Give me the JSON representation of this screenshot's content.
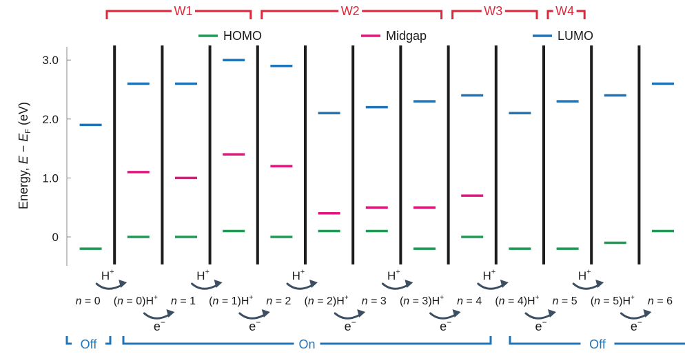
{
  "colors": {
    "homo": "#1e9a55",
    "midgap": "#e0187d",
    "lumo": "#1f74b8",
    "bracket_red": "#e0253a",
    "bracket_blue": "#1f74b8",
    "arrow": "#3c4f62",
    "divider": "#1c1c1c",
    "axis": "#888888"
  },
  "chart_data": {
    "type": "energy-level-diagram",
    "ylabel": "Energy, E − E_F (eV)",
    "ylabel_parts": {
      "pre": "Energy, ",
      "e1": "E",
      "mid": " − ",
      "e2": "E",
      "sub": "F",
      "post": " (eV)"
    },
    "yticks": [
      {
        "value": 0,
        "label": "0"
      },
      {
        "value": 1.0,
        "label": "1.0"
      },
      {
        "value": 2.0,
        "label": "2.0"
      },
      {
        "value": 3.0,
        "label": "3.0"
      }
    ],
    "ylim": [
      -0.5,
      3.3
    ],
    "legend": [
      {
        "name": "HOMO",
        "key": "homo"
      },
      {
        "name": "Midgap",
        "key": "midgap"
      },
      {
        "name": "LUMO",
        "key": "lumo"
      }
    ],
    "windows": [
      {
        "label": "W1",
        "from": 1,
        "to": 4
      },
      {
        "label": "W2",
        "from": 4,
        "to": 8
      },
      {
        "label": "W3",
        "from": 8,
        "to": 10
      },
      {
        "label": "W4",
        "from": 10,
        "to": 11
      }
    ],
    "states": [
      {
        "top": "",
        "bottom": "n = 0",
        "bottom_parts": {
          "n": "n",
          "rest": " = 0",
          "h": ""
        },
        "homo": -0.2,
        "midgap": null,
        "lumo": 1.9
      },
      {
        "top": "",
        "bottom": "(n = 0)H+",
        "bottom_parts": {
          "pre": "(",
          "n": "n",
          "rest": " = 0)H",
          "h": "+"
        },
        "homo": 0.0,
        "midgap": 1.1,
        "lumo": 2.6
      },
      {
        "top": "",
        "bottom": "n = 1",
        "bottom_parts": {
          "n": "n",
          "rest": " = 1",
          "h": ""
        },
        "homo": 0.0,
        "midgap": 1.0,
        "lumo": 2.6
      },
      {
        "top": "",
        "bottom": "(n = 1)H+",
        "bottom_parts": {
          "pre": "(",
          "n": "n",
          "rest": " = 1)H",
          "h": "+"
        },
        "homo": 0.1,
        "midgap": 1.4,
        "lumo": 3.0
      },
      {
        "top": "",
        "bottom": "n = 2",
        "bottom_parts": {
          "n": "n",
          "rest": " = 2",
          "h": ""
        },
        "homo": 0.0,
        "midgap": 1.2,
        "lumo": 2.9
      },
      {
        "top": "",
        "bottom": "(n = 2)H+",
        "bottom_parts": {
          "pre": "(",
          "n": "n",
          "rest": " = 2)H",
          "h": "+"
        },
        "homo": 0.1,
        "midgap": 0.4,
        "lumo": 2.1
      },
      {
        "top": "",
        "bottom": "n = 3",
        "bottom_parts": {
          "n": "n",
          "rest": " = 3",
          "h": ""
        },
        "homo": 0.1,
        "midgap": 0.5,
        "lumo": 2.2
      },
      {
        "top": "",
        "bottom": "(n = 3)H+",
        "bottom_parts": {
          "pre": "(",
          "n": "n",
          "rest": " = 3)H",
          "h": "+"
        },
        "homo": -0.2,
        "midgap": 0.5,
        "lumo": 2.3
      },
      {
        "top": "",
        "bottom": "n = 4",
        "bottom_parts": {
          "n": "n",
          "rest": " = 4",
          "h": ""
        },
        "homo": 0.0,
        "midgap": 0.7,
        "lumo": 2.4
      },
      {
        "top": "",
        "bottom": "(n = 4)H+",
        "bottom_parts": {
          "pre": "(",
          "n": "n",
          "rest": " = 4)H",
          "h": "+"
        },
        "homo": -0.2,
        "midgap": null,
        "lumo": 2.1
      },
      {
        "top": "",
        "bottom": "n = 5",
        "bottom_parts": {
          "n": "n",
          "rest": " = 5",
          "h": ""
        },
        "homo": -0.2,
        "midgap": null,
        "lumo": 2.3
      },
      {
        "top": "",
        "bottom": "(n = 5)H+",
        "bottom_parts": {
          "pre": "(",
          "n": "n",
          "rest": " = 5)H",
          "h": "+"
        },
        "homo": -0.1,
        "midgap": null,
        "lumo": 2.4
      },
      {
        "top": "",
        "bottom": "n = 6",
        "bottom_parts": {
          "n": "n",
          "rest": " = 6",
          "h": ""
        },
        "homo": 0.1,
        "midgap": null,
        "lumo": 2.6
      }
    ],
    "transitions": [
      {
        "between": [
          0,
          1
        ],
        "label": "H+",
        "row": "upper"
      },
      {
        "between": [
          1,
          2
        ],
        "label": "e−",
        "row": "lower"
      },
      {
        "between": [
          2,
          3
        ],
        "label": "H+",
        "row": "upper"
      },
      {
        "between": [
          3,
          4
        ],
        "label": "e−",
        "row": "lower"
      },
      {
        "between": [
          4,
          5
        ],
        "label": "H+",
        "row": "upper"
      },
      {
        "between": [
          5,
          6
        ],
        "label": "e−",
        "row": "lower"
      },
      {
        "between": [
          6,
          7
        ],
        "label": "H+",
        "row": "upper"
      },
      {
        "between": [
          7,
          8
        ],
        "label": "e−",
        "row": "lower"
      },
      {
        "between": [
          8,
          9
        ],
        "label": "H+",
        "row": "upper"
      },
      {
        "between": [
          9,
          10
        ],
        "label": "e−",
        "row": "lower"
      },
      {
        "between": [
          10,
          11
        ],
        "label": "H+",
        "row": "upper"
      },
      {
        "between": [
          11,
          12
        ],
        "label": "e−",
        "row": "lower"
      }
    ],
    "bottom_groups": [
      {
        "label": "Off",
        "from": 0,
        "to": 1
      },
      {
        "label": "On",
        "from": 1,
        "to": 9
      },
      {
        "label": "Off",
        "from": 9,
        "to": 13
      }
    ]
  }
}
